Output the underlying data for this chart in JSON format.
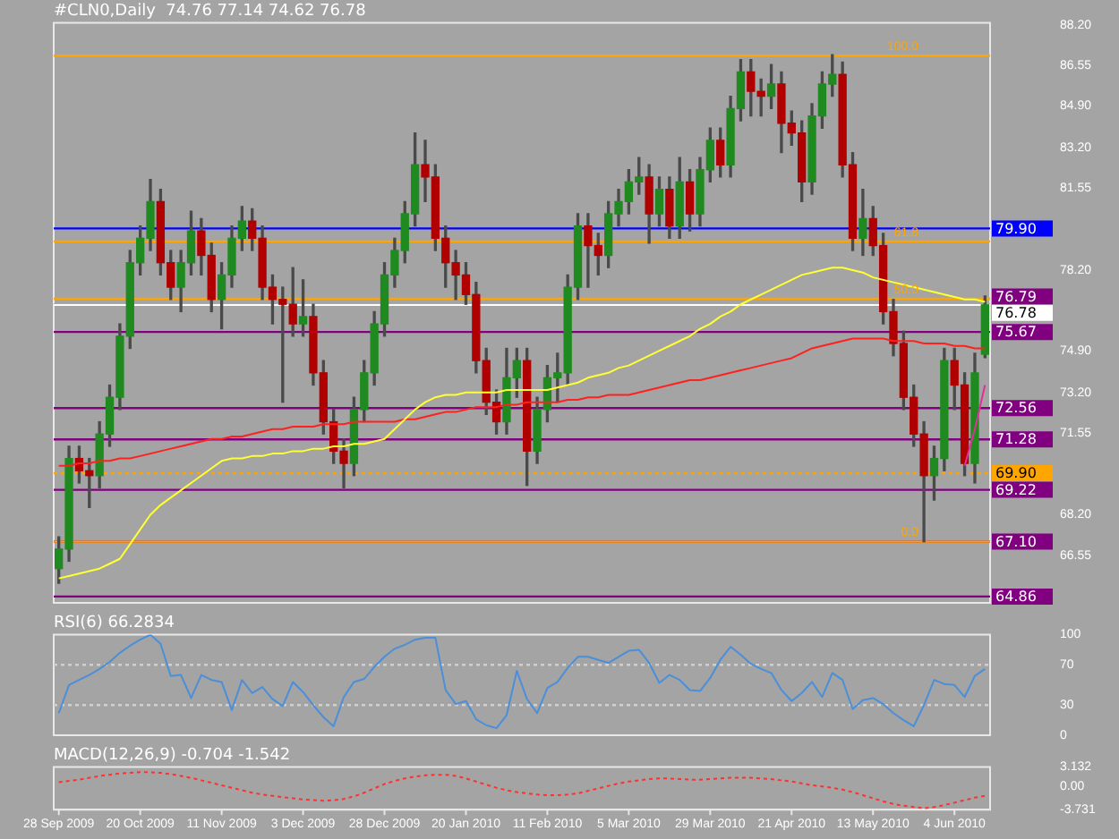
{
  "chart_data": [
    {
      "type": "candlestick",
      "title": "#CLN0,Daily  74.76 77.14 74.62 76.78",
      "tick_labels": "y",
      "grid": false,
      "legend": false,
      "categories": [
        null,
        null,
        null,
        null,
        null,
        null,
        null,
        null,
        null,
        null,
        null,
        null,
        null,
        null,
        null,
        null,
        null,
        null,
        null,
        null,
        null,
        null,
        null,
        null,
        null,
        null,
        null,
        null,
        null,
        null,
        null,
        null,
        null,
        null,
        null,
        null,
        null,
        null,
        null,
        null,
        null,
        null,
        null,
        null,
        null,
        null,
        null,
        null,
        null,
        null,
        null,
        null,
        null,
        null,
        null,
        null,
        null,
        null,
        null,
        null,
        null,
        null,
        null,
        null,
        null,
        null,
        null,
        null,
        null,
        null,
        null,
        null,
        null,
        null,
        null,
        null,
        null,
        null,
        null,
        null,
        null,
        null,
        null,
        null,
        null,
        null,
        null,
        null,
        null,
        null,
        null,
        null
      ],
      "ohlc": [
        [
          66.0,
          67.3,
          65.4,
          66.8
        ],
        [
          66.8,
          71.0,
          66.3,
          70.5
        ],
        [
          70.5,
          71.0,
          69.5,
          70.0
        ],
        [
          70.0,
          70.5,
          68.5,
          69.8
        ],
        [
          69.8,
          72.0,
          69.3,
          71.5
        ],
        [
          71.5,
          73.5,
          71.0,
          73.0
        ],
        [
          73.0,
          76.0,
          72.5,
          75.5
        ],
        [
          75.5,
          79.0,
          75.0,
          78.5
        ],
        [
          78.5,
          80.0,
          78.0,
          79.5
        ],
        [
          79.5,
          81.9,
          79.0,
          81.0
        ],
        [
          81.0,
          81.5,
          78.0,
          78.5
        ],
        [
          78.5,
          79.0,
          77.0,
          77.5
        ],
        [
          77.5,
          79.0,
          76.5,
          78.5
        ],
        [
          78.5,
          80.6,
          78.0,
          79.8
        ],
        [
          79.8,
          80.3,
          78.0,
          78.8
        ],
        [
          78.8,
          79.3,
          76.5,
          77.0
        ],
        [
          77.0,
          78.5,
          75.8,
          78.0
        ],
        [
          78.0,
          80.0,
          77.5,
          79.5
        ],
        [
          79.5,
          80.8,
          79.0,
          80.2
        ],
        [
          80.2,
          80.7,
          79.0,
          79.5
        ],
        [
          79.5,
          80.0,
          77.0,
          77.5
        ],
        [
          77.5,
          78.0,
          76.0,
          77.0
        ],
        [
          77.0,
          77.5,
          72.8,
          76.8
        ],
        [
          76.8,
          78.3,
          75.5,
          76.0
        ],
        [
          76.0,
          77.8,
          75.5,
          76.3
        ],
        [
          76.3,
          76.8,
          73.5,
          74.0
        ],
        [
          74.0,
          74.5,
          71.5,
          72.0
        ],
        [
          72.0,
          72.5,
          70.3,
          70.8
        ],
        [
          70.8,
          71.3,
          69.3,
          70.3
        ],
        [
          70.3,
          73.0,
          69.8,
          72.5
        ],
        [
          72.5,
          74.5,
          72.0,
          74.0
        ],
        [
          74.0,
          76.5,
          73.5,
          76.0
        ],
        [
          76.0,
          78.5,
          75.5,
          78.0
        ],
        [
          78.0,
          79.5,
          77.5,
          79.0
        ],
        [
          79.0,
          81.0,
          78.5,
          80.5
        ],
        [
          80.5,
          83.8,
          80.0,
          82.5
        ],
        [
          82.5,
          83.5,
          81.0,
          82.0
        ],
        [
          82.0,
          82.5,
          79.0,
          79.5
        ],
        [
          79.5,
          80.0,
          77.5,
          78.5
        ],
        [
          78.5,
          79.0,
          77.0,
          78.0
        ],
        [
          78.0,
          78.5,
          76.8,
          77.2
        ],
        [
          77.2,
          77.7,
          74.0,
          74.5
        ],
        [
          74.5,
          75.0,
          72.3,
          72.8
        ],
        [
          72.8,
          73.3,
          71.5,
          72.0
        ],
        [
          72.0,
          75.0,
          71.5,
          73.8
        ],
        [
          73.8,
          75.0,
          73.0,
          74.5
        ],
        [
          74.5,
          75.0,
          69.4,
          70.8
        ],
        [
          70.8,
          73.0,
          70.3,
          72.5
        ],
        [
          72.5,
          74.3,
          72.0,
          73.8
        ],
        [
          73.8,
          74.8,
          72.8,
          74.0
        ],
        [
          74.0,
          78.0,
          73.5,
          77.5
        ],
        [
          77.5,
          80.5,
          77.0,
          80.0
        ],
        [
          80.0,
          80.5,
          77.5,
          79.2
        ],
        [
          79.2,
          79.7,
          78.0,
          78.8
        ],
        [
          78.8,
          81.0,
          78.3,
          80.5
        ],
        [
          80.5,
          81.5,
          80.0,
          81.0
        ],
        [
          81.0,
          82.3,
          80.5,
          81.8
        ],
        [
          81.8,
          82.8,
          81.3,
          82.0
        ],
        [
          82.0,
          82.5,
          79.3,
          80.5
        ],
        [
          80.5,
          82.0,
          80.0,
          81.5
        ],
        [
          81.5,
          82.0,
          79.5,
          80.0
        ],
        [
          80.0,
          82.8,
          79.5,
          81.8
        ],
        [
          81.8,
          82.3,
          79.8,
          80.5
        ],
        [
          80.5,
          82.8,
          80.0,
          82.3
        ],
        [
          82.3,
          84.0,
          81.8,
          83.5
        ],
        [
          83.5,
          84.0,
          82.0,
          82.5
        ],
        [
          82.5,
          85.3,
          82.0,
          84.8
        ],
        [
          84.8,
          86.8,
          84.3,
          86.3
        ],
        [
          86.3,
          86.8,
          84.5,
          85.5
        ],
        [
          85.5,
          86.0,
          84.5,
          85.3
        ],
        [
          85.3,
          86.6,
          84.8,
          85.8
        ],
        [
          85.8,
          86.3,
          83.0,
          84.2
        ],
        [
          84.2,
          84.7,
          83.3,
          83.8
        ],
        [
          83.8,
          84.3,
          81.0,
          81.8
        ],
        [
          81.8,
          85.0,
          81.3,
          84.5
        ],
        [
          84.5,
          86.3,
          84.0,
          85.8
        ],
        [
          85.8,
          87.0,
          85.3,
          86.2
        ],
        [
          86.2,
          86.7,
          82.0,
          82.5
        ],
        [
          82.5,
          83.0,
          79.0,
          79.5
        ],
        [
          79.5,
          81.5,
          78.8,
          80.3
        ],
        [
          80.3,
          80.8,
          78.8,
          79.2
        ],
        [
          79.2,
          79.7,
          76.0,
          76.5
        ],
        [
          76.5,
          77.0,
          74.7,
          75.2
        ],
        [
          75.2,
          75.7,
          72.5,
          73.0
        ],
        [
          73.0,
          73.5,
          71.0,
          71.5
        ],
        [
          71.5,
          72.0,
          67.1,
          69.8
        ],
        [
          69.8,
          71.0,
          68.8,
          70.5
        ],
        [
          70.5,
          75.0,
          70.0,
          74.5
        ],
        [
          74.5,
          75.0,
          72.5,
          73.5
        ],
        [
          73.5,
          74.0,
          69.8,
          70.3
        ],
        [
          70.3,
          74.8,
          69.5,
          74.0
        ],
        [
          74.76,
          77.14,
          74.62,
          76.78
        ]
      ],
      "series": [
        {
          "type": "line",
          "color": "#ffff33",
          "values": [
            65.6,
            65.7,
            65.8,
            65.9,
            66.0,
            66.2,
            66.4,
            67.0,
            67.6,
            68.2,
            68.6,
            68.9,
            69.2,
            69.5,
            69.8,
            70.1,
            70.4,
            70.5,
            70.5,
            70.6,
            70.6,
            70.7,
            70.7,
            70.8,
            70.8,
            70.9,
            70.9,
            71.0,
            71.0,
            71.1,
            71.1,
            71.2,
            71.3,
            71.7,
            72.1,
            72.5,
            72.8,
            73.0,
            73.1,
            73.1,
            73.2,
            73.2,
            73.2,
            73.2,
            73.3,
            73.3,
            73.3,
            73.3,
            73.3,
            73.4,
            73.5,
            73.6,
            73.8,
            73.9,
            74.0,
            74.2,
            74.3,
            74.5,
            74.7,
            74.9,
            75.1,
            75.3,
            75.5,
            75.8,
            76.0,
            76.3,
            76.5,
            76.8,
            77.0,
            77.2,
            77.4,
            77.6,
            77.8,
            78.0,
            78.1,
            78.2,
            78.3,
            78.3,
            78.2,
            78.1,
            77.9,
            77.8,
            77.7,
            77.6,
            77.5,
            77.4,
            77.3,
            77.2,
            77.1,
            77.0,
            77.0,
            76.9
          ]
        },
        {
          "type": "line",
          "color": "#ff2020",
          "values": [
            70.2,
            70.2,
            70.3,
            70.3,
            70.4,
            70.4,
            70.5,
            70.5,
            70.6,
            70.7,
            70.8,
            70.9,
            71.0,
            71.1,
            71.2,
            71.3,
            71.3,
            71.4,
            71.4,
            71.5,
            71.6,
            71.7,
            71.7,
            71.8,
            71.8,
            71.8,
            71.9,
            71.9,
            71.9,
            72.0,
            72.0,
            72.0,
            72.0,
            72.0,
            72.1,
            72.1,
            72.2,
            72.3,
            72.4,
            72.4,
            72.5,
            72.6,
            72.6,
            72.6,
            72.7,
            72.7,
            72.8,
            72.8,
            72.8,
            72.8,
            72.9,
            72.9,
            73.0,
            73.0,
            73.1,
            73.1,
            73.1,
            73.2,
            73.3,
            73.4,
            73.5,
            73.6,
            73.7,
            73.7,
            73.8,
            73.9,
            74.0,
            74.1,
            74.2,
            74.3,
            74.4,
            74.5,
            74.6,
            74.8,
            75.0,
            75.1,
            75.2,
            75.3,
            75.4,
            75.4,
            75.4,
            75.4,
            75.3,
            75.3,
            75.3,
            75.2,
            75.2,
            75.2,
            75.1,
            75.1,
            75.0,
            75.0
          ]
        },
        {
          "type": "line",
          "color": "#e0309a",
          "values": [
            null,
            null,
            null,
            null,
            null,
            null,
            null,
            null,
            null,
            null,
            null,
            null,
            null,
            null,
            null,
            null,
            null,
            null,
            null,
            null,
            null,
            null,
            null,
            null,
            null,
            null,
            null,
            null,
            null,
            null,
            null,
            null,
            null,
            null,
            null,
            null,
            null,
            null,
            null,
            null,
            null,
            null,
            null,
            null,
            null,
            null,
            null,
            null,
            null,
            null,
            null,
            null,
            null,
            null,
            null,
            null,
            null,
            null,
            null,
            null,
            null,
            null,
            null,
            null,
            null,
            null,
            null,
            null,
            null,
            null,
            null,
            null,
            null,
            null,
            null,
            null,
            null,
            null,
            null,
            null,
            null,
            null,
            null,
            null,
            null,
            null,
            null,
            null,
            null,
            70.2,
            71.7,
            73.5
          ]
        }
      ],
      "ylim": [
        64.6,
        88.3
      ],
      "yticks": [
        {
          "value": 66.55,
          "label": "66.55"
        },
        {
          "value": 68.2,
          "label": "68.20"
        },
        {
          "value": 71.55,
          "label": "71.55"
        },
        {
          "value": 73.2,
          "label": "73.20"
        },
        {
          "value": 74.9,
          "label": "74.90"
        },
        {
          "value": 78.2,
          "label": "78.20"
        },
        {
          "value": 81.55,
          "label": "81.55"
        },
        {
          "value": 83.2,
          "label": "83.20"
        },
        {
          "value": 84.9,
          "label": "84.90"
        },
        {
          "value": 86.55,
          "label": "86.55"
        },
        {
          "value": 88.2,
          "label": "88.20"
        }
      ],
      "ref_lines": [
        {
          "axis": "y",
          "value": 86.96,
          "color": "#ffa500"
        },
        {
          "axis": "y",
          "value": 79.9,
          "label": "79.90",
          "color": "#0000ff"
        },
        {
          "axis": "y",
          "value": 79.37,
          "color": "#ffa500"
        },
        {
          "axis": "y",
          "value": 77.03,
          "color": "#ffa500"
        },
        {
          "axis": "y",
          "value": 76.79,
          "label": "76.79",
          "color": "#800080"
        },
        {
          "axis": "y",
          "value": 76.78,
          "label": "76.78",
          "color": "#ffffff"
        },
        {
          "axis": "y",
          "value": 75.67,
          "label": "75.67",
          "color": "#800080"
        },
        {
          "axis": "y",
          "value": 72.56,
          "label": "72.56",
          "color": "#800080"
        },
        {
          "axis": "y",
          "value": 71.28,
          "label": "71.28",
          "color": "#800080"
        },
        {
          "axis": "y",
          "value": 69.9,
          "label": "69.90",
          "color": "#ffa500",
          "line_style": "dotted"
        },
        {
          "axis": "y",
          "value": 69.22,
          "label": "69.22",
          "color": "#800080"
        },
        {
          "axis": "y",
          "value": 67.1,
          "label": "67.10",
          "color": "#800080"
        },
        {
          "axis": "y",
          "value": 67.1,
          "color": "#ffa500"
        },
        {
          "axis": "y",
          "value": 64.86,
          "label": "64.86",
          "color": "#800080"
        }
      ],
      "annotations": [
        {
          "text": "100.0",
          "y": 86.96
        },
        {
          "text": "61.8",
          "y": 79.37
        },
        {
          "text": "50.0",
          "y": 77.03
        },
        {
          "text": "0.0",
          "y": 67.1
        }
      ]
    },
    {
      "type": "line",
      "title": "RSI(6) 66.2834",
      "tick_labels": "y",
      "grid": false,
      "legend": false,
      "categories": [
        null,
        null,
        null,
        null,
        null,
        null,
        null,
        null,
        null,
        null,
        null,
        null,
        null,
        null,
        null,
        null,
        null,
        null,
        null,
        null,
        null,
        null,
        null,
        null,
        null,
        null,
        null,
        null,
        null,
        null,
        null,
        null,
        null,
        null,
        null,
        null,
        null,
        null,
        null,
        null,
        null,
        null,
        null,
        null,
        null,
        null,
        null,
        null,
        null,
        null,
        null,
        null,
        null,
        null,
        null,
        null,
        null,
        null,
        null,
        null,
        null,
        null,
        null,
        null,
        null,
        null,
        null,
        null,
        null,
        null,
        null,
        null,
        null,
        null,
        null,
        null,
        null,
        null,
        null,
        null,
        null,
        null,
        null,
        null,
        null,
        null,
        null,
        null,
        null,
        null,
        null,
        null
      ],
      "series": [
        {
          "color": "#4a8fd8",
          "values": [
            22,
            50,
            55,
            60,
            66,
            73,
            82,
            89,
            95,
            100,
            91,
            59,
            60,
            37,
            60,
            55,
            53,
            25,
            55,
            42,
            48,
            36,
            29,
            53,
            43,
            30,
            18,
            9,
            38,
            53,
            56,
            68,
            78,
            86,
            90,
            95,
            97,
            97,
            45,
            31,
            34,
            16,
            10,
            7,
            20,
            64,
            36,
            22,
            47,
            53,
            67,
            78,
            78,
            75,
            72,
            78,
            84,
            85,
            72,
            52,
            60,
            55,
            45,
            44,
            57,
            75,
            88,
            80,
            71,
            66,
            62,
            45,
            34,
            42,
            53,
            38,
            62,
            55,
            26,
            35,
            37,
            31,
            22,
            15,
            9,
            30,
            55,
            51,
            50,
            38,
            59,
            66
          ]
        }
      ],
      "ylim": [
        0,
        100
      ],
      "yticks": [
        0,
        30,
        70,
        100
      ],
      "ref_lines": [
        {
          "axis": "y",
          "value": 30,
          "color": "#d0d0d0",
          "line_style": "dotted"
        },
        {
          "axis": "y",
          "value": 70,
          "color": "#d0d0d0",
          "line_style": "dotted"
        }
      ]
    },
    {
      "type": "line",
      "title": "MACD(12,26,9) -0.704 -1.542",
      "grid": false,
      "legend": false,
      "line_style": "dotted",
      "categories": [
        "28 Sep 2009",
        null,
        null,
        null,
        null,
        null,
        null,
        null,
        "20 Oct 2009",
        null,
        null,
        null,
        null,
        null,
        null,
        null,
        "11 Nov 2009",
        null,
        null,
        null,
        null,
        null,
        null,
        null,
        "3 Dec 2009",
        null,
        null,
        null,
        null,
        null,
        null,
        null,
        "28 Dec 2009",
        null,
        null,
        null,
        null,
        null,
        null,
        null,
        "20 Jan 2010",
        null,
        null,
        null,
        null,
        null,
        null,
        null,
        "11 Feb 2010",
        null,
        null,
        null,
        null,
        null,
        null,
        null,
        "5 Mar 2010",
        null,
        null,
        null,
        null,
        null,
        null,
        null,
        "29 Mar 2010",
        null,
        null,
        null,
        null,
        null,
        null,
        null,
        "21 Apr 2010",
        null,
        null,
        null,
        null,
        null,
        null,
        null,
        "13 May 2010",
        null,
        null,
        null,
        null,
        null,
        null,
        null,
        "4 Jun 2010",
        null,
        null,
        null
      ],
      "series": [
        {
          "color": "#ff3030",
          "values": [
            0.7,
            0.9,
            1.1,
            1.4,
            1.7,
            1.9,
            2.1,
            2.2,
            2.3,
            2.3,
            2.2,
            2.0,
            1.7,
            1.4,
            1.0,
            0.6,
            0.2,
            -0.2,
            -0.6,
            -1.0,
            -1.3,
            -1.5,
            -1.7,
            -1.9,
            -2.1,
            -2.2,
            -2.3,
            -2.2,
            -2.0,
            -1.6,
            -1.0,
            -0.3,
            0.4,
            0.9,
            1.3,
            1.6,
            1.8,
            1.9,
            1.9,
            1.7,
            1.3,
            0.8,
            0.3,
            -0.2,
            -0.6,
            -0.9,
            -1.1,
            -1.3,
            -1.4,
            -1.4,
            -1.3,
            -1.1,
            -0.7,
            -0.3,
            0.1,
            0.5,
            0.8,
            1.0,
            1.2,
            1.3,
            1.3,
            1.2,
            1.1,
            1.1,
            1.2,
            1.3,
            1.4,
            1.4,
            1.4,
            1.3,
            1.2,
            1.0,
            0.8,
            0.5,
            0.2,
            0.0,
            -0.2,
            -0.5,
            -0.9,
            -1.4,
            -1.9,
            -2.4,
            -2.8,
            -3.1,
            -3.3,
            -3.5,
            -3.3,
            -3.0,
            -2.6,
            -2.2,
            -1.8,
            -1.5
          ]
        }
      ],
      "ylim": [
        -3.731,
        3.132
      ],
      "yticks": [
        {
          "value": -3.731,
          "label": "-3.731"
        },
        {
          "value": 0,
          "label": "0.00"
        },
        {
          "value": 3.132,
          "label": "3.132"
        }
      ]
    }
  ]
}
